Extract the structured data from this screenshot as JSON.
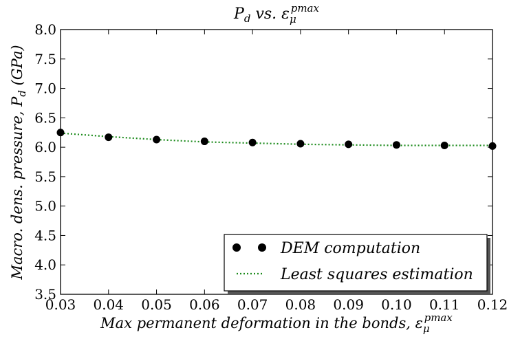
{
  "chart_data": {
    "type": "scatter",
    "title": "Pd vs. εμpmax",
    "xlabel": "Max permanent deformation in the bonds, εμpmax",
    "ylabel": "Macro. dens. pressure, Pd (GPa)",
    "xlim": [
      0.03,
      0.12
    ],
    "ylim": [
      3.5,
      8.0
    ],
    "xticks": [
      "0.03",
      "0.04",
      "0.05",
      "0.06",
      "0.07",
      "0.08",
      "0.09",
      "0.10",
      "0.11",
      "0.12"
    ],
    "yticks": [
      "3.5",
      "4.0",
      "4.5",
      "5.0",
      "5.5",
      "6.0",
      "6.5",
      "7.0",
      "7.5",
      "8.0"
    ],
    "legend_position": "lower-right",
    "series": [
      {
        "name": "DEM computation",
        "style": "markers",
        "color": "#000000",
        "x": [
          0.03,
          0.04,
          0.05,
          0.06,
          0.07,
          0.08,
          0.09,
          0.1,
          0.11,
          0.12
        ],
        "y": [
          6.25,
          6.17,
          6.13,
          6.1,
          6.08,
          6.06,
          6.05,
          6.04,
          6.03,
          6.02
        ]
      },
      {
        "name": "Least squares estimation",
        "style": "dotted-line",
        "color": "#1a8a1a",
        "x": [
          0.03,
          0.04,
          0.05,
          0.06,
          0.07,
          0.08,
          0.09,
          0.1,
          0.11,
          0.12
        ],
        "y": [
          6.24,
          6.18,
          6.13,
          6.09,
          6.07,
          6.05,
          6.04,
          6.03,
          6.03,
          6.03
        ]
      }
    ]
  }
}
